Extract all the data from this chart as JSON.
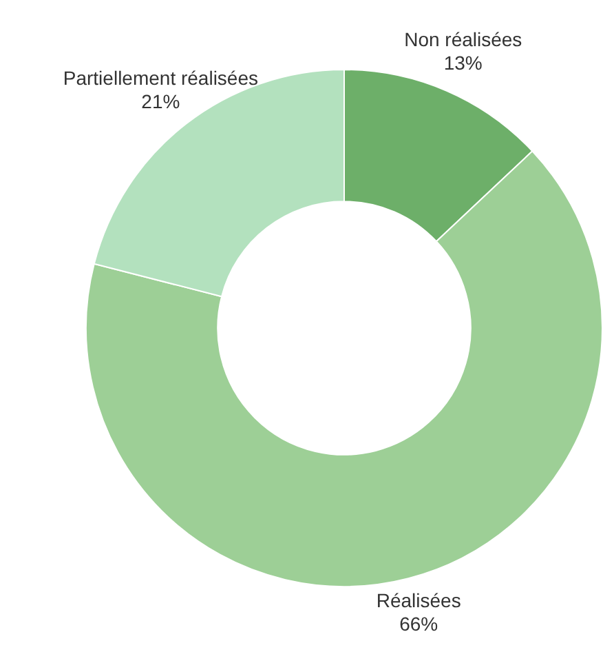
{
  "chart_data": {
    "type": "donut",
    "categories": [
      "Non réalisées",
      "Réalisées",
      "Partiellement réalisées"
    ],
    "values": [
      13,
      66,
      21
    ],
    "value_labels": [
      "13%",
      "66%",
      "21%"
    ],
    "colors": [
      "#6daf69",
      "#9dcf96",
      "#b3e1be"
    ],
    "legend": false
  }
}
